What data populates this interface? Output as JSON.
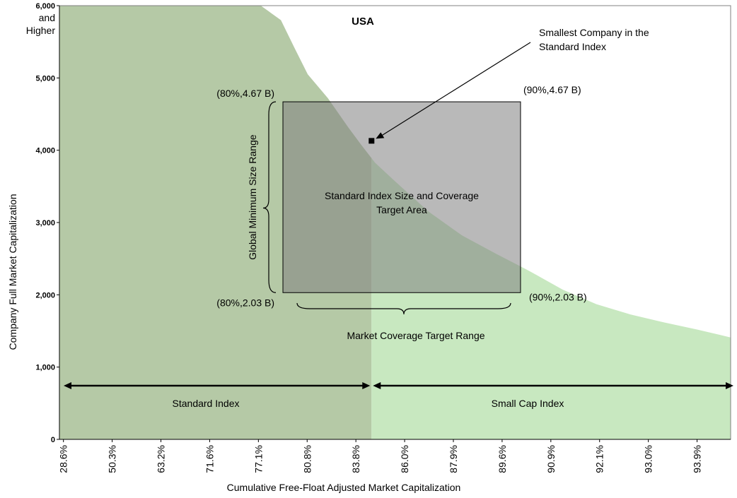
{
  "chart_data": {
    "type": "area",
    "title": "USA",
    "xlabel": "Cumulative Free-Float Adjusted Market Capitalization",
    "ylabel": "Company Full Market Capitalization",
    "x_tick_labels": [
      "28.6%",
      "50.3%",
      "63.2%",
      "71.6%",
      "77.1%",
      "80.8%",
      "83.8%",
      "86.0%",
      "87.9%",
      "89.6%",
      "90.9%",
      "92.1%",
      "93.0%",
      "93.9%"
    ],
    "y_ticks": [
      {
        "value": 0,
        "label": "0"
      },
      {
        "value": 1000,
        "label": "1,000"
      },
      {
        "value": 2000,
        "label": "2,000"
      },
      {
        "value": 3000,
        "label": "3,000"
      },
      {
        "value": 4000,
        "label": "4,000"
      },
      {
        "value": 5000,
        "label": "5,000"
      }
    ],
    "y_top_label": [
      "6,000",
      "and",
      "Higher"
    ],
    "ylim": [
      0,
      6000
    ],
    "grid": false,
    "curve": {
      "x_positions": [
        0.0,
        0.3,
        0.33,
        0.35,
        0.37,
        0.4,
        0.43,
        0.45,
        0.47,
        0.5,
        0.55,
        0.6,
        0.65,
        0.7,
        0.75,
        0.8,
        0.85,
        0.9,
        0.95,
        1.0
      ],
      "values": [
        6000,
        6000,
        5800,
        5420,
        5050,
        4720,
        4320,
        4070,
        3830,
        3570,
        3150,
        2820,
        2570,
        2330,
        2070,
        1870,
        1730,
        1620,
        1520,
        1410
      ]
    },
    "split_position": 0.465,
    "series": [
      {
        "name": "Standard Index",
        "color": "#b5c9a6"
      },
      {
        "name": "Small Cap Index",
        "color": "#c8e8c0"
      }
    ],
    "target_box": {
      "x_range": [
        0.333,
        0.687
      ],
      "y_range": [
        2030,
        4670
      ],
      "label": "Standard Index Size and Coverage Target Area",
      "label_lines": [
        "Standard Index Size and Coverage",
        "Target Area"
      ],
      "color": "#808080",
      "corners": {
        "top_left": "(80%,4.67 B)",
        "top_right": "(90%,4.67 B)",
        "bottom_left": "(80%,2.03 B)",
        "bottom_right": "(90%,2.03 B)"
      }
    },
    "annotations": {
      "smallest_company": {
        "lines": [
          "Smallest Company in the",
          "Standard Index"
        ],
        "x_position": 0.465,
        "value": 4130
      },
      "size_range": "Global Minimum Size Range",
      "coverage_range": "Market Coverage Target Range",
      "index_ranges": [
        {
          "label": "Standard Index"
        },
        {
          "label": "Small Cap Index"
        }
      ]
    }
  }
}
